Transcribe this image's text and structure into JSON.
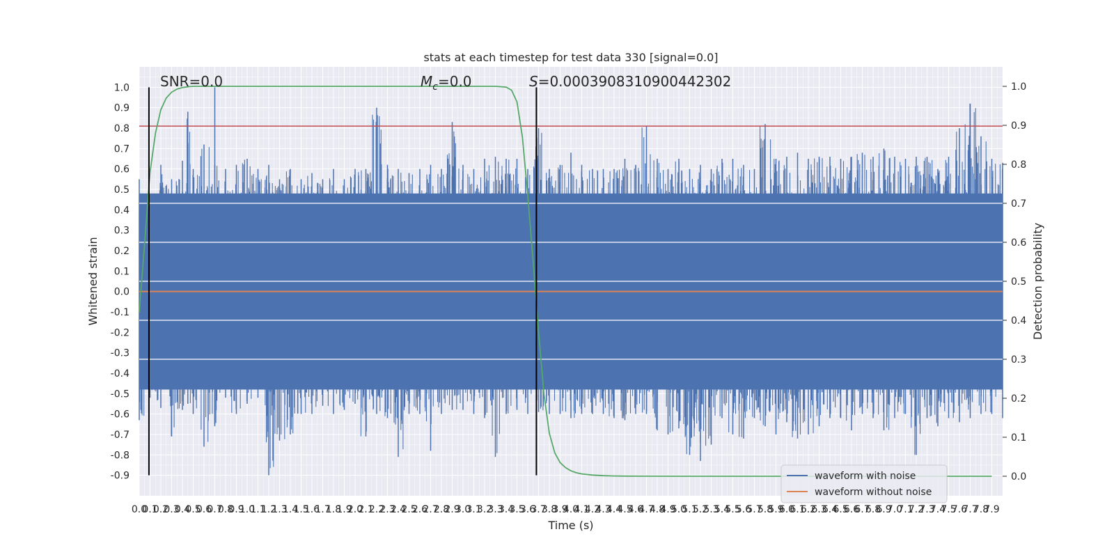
{
  "chart_data": {
    "type": "line",
    "title": "stats at each timestep for test data 330 [signal=0.0]",
    "xlabel": "Time (s)",
    "ylabel": "Whitened strain",
    "y2label": "Detection probability",
    "xlim": [
      0.0,
      8.0
    ],
    "ylim": [
      -1.0,
      1.1
    ],
    "y2lim": [
      -0.05,
      1.05
    ],
    "grid": true,
    "background": "#eaeaf2",
    "x_ticks": [
      "0.0",
      "0.1",
      "0.2",
      "0.3",
      "0.4",
      "0.5",
      "0.6",
      "0.7",
      "0.8",
      "0.9",
      "1.0",
      "1.1",
      "1.2",
      "1.3",
      "1.4",
      "1.5",
      "1.6",
      "1.7",
      "1.8",
      "1.9",
      "2.0",
      "2.1",
      "2.2",
      "2.3",
      "2.4",
      "2.5",
      "2.6",
      "2.7",
      "2.8",
      "2.9",
      "3.0",
      "3.1",
      "3.2",
      "3.3",
      "3.4",
      "3.5",
      "3.6",
      "3.7",
      "3.8",
      "3.9",
      "4.0",
      "4.1",
      "4.2",
      "4.3",
      "4.4",
      "4.5",
      "4.6",
      "4.7",
      "4.8",
      "4.9",
      "5.0",
      "5.1",
      "5.2",
      "5.3",
      "5.4",
      "5.5",
      "5.6",
      "5.7",
      "5.8",
      "5.9",
      "6.0",
      "6.1",
      "6.2",
      "6.3",
      "6.4",
      "6.5",
      "6.6",
      "6.7",
      "6.8",
      "6.9",
      "7.0",
      "7.1",
      "7.2",
      "7.3",
      "7.4",
      "7.5",
      "7.6",
      "7.7",
      "7.8",
      "7.9"
    ],
    "y_ticks": [
      "1.0",
      "0.9",
      "0.8",
      "0.7",
      "0.6",
      "0.5",
      "0.4",
      "0.3",
      "0.2",
      "0.1",
      "0.0",
      "-0.1",
      "-0.2",
      "-0.3",
      "-0.4",
      "-0.5",
      "-0.6",
      "-0.7",
      "-0.8",
      "-0.9"
    ],
    "y_tick_values": [
      1.0,
      0.9,
      0.8,
      0.7,
      0.6,
      0.5,
      0.4,
      0.3,
      0.2,
      0.1,
      0.0,
      -0.1,
      -0.2,
      -0.3,
      -0.4,
      -0.5,
      -0.6,
      -0.7,
      -0.8,
      -0.9
    ],
    "y2_ticks": [
      "1.0",
      "0.9",
      "0.8",
      "0.7",
      "0.6",
      "0.5",
      "0.4",
      "0.3",
      "0.2",
      "0.1",
      "0.0"
    ],
    "y2_tick_values": [
      1.0,
      0.9,
      0.8,
      0.7,
      0.6,
      0.5,
      0.4,
      0.3,
      0.2,
      0.1,
      0.0
    ],
    "y2_grid_values": [
      0.7,
      0.6,
      0.5,
      0.4,
      0.3
    ],
    "annotations": {
      "snr": "SNR=0.0",
      "mc_symbol": "M",
      "mc_sub": "c",
      "mc_value": "=0.0",
      "s_symbol": "S",
      "s_value": "=0.0003908310900442302"
    },
    "legend": {
      "position": "lower-right",
      "entries": [
        "waveform with noise",
        "waveform without noise"
      ]
    },
    "colors": {
      "noise": "#4c72b0",
      "clean": "#dd8452",
      "prob": "#55a868",
      "threshold": "#c44e52",
      "marker": "#000000"
    },
    "threshold": 0.81,
    "vlines": [
      0.09,
      3.68
    ],
    "vline_range": [
      -0.9,
      1.0
    ],
    "noise_envelope": [
      [
        0.0,
        0.55,
        -0.63
      ],
      [
        0.1,
        0.46,
        -0.52
      ],
      [
        0.2,
        0.62,
        -0.57
      ],
      [
        0.3,
        0.55,
        -0.71
      ],
      [
        0.4,
        0.64,
        -0.58
      ],
      [
        0.45,
        0.88,
        -0.55
      ],
      [
        0.5,
        0.6,
        -0.6
      ],
      [
        0.6,
        0.72,
        -0.76
      ],
      [
        0.7,
        0.62,
        -0.66
      ],
      [
        0.7,
        1.0,
        -0.65
      ],
      [
        0.8,
        0.6,
        -0.52
      ],
      [
        0.9,
        0.62,
        -0.6
      ],
      [
        1.0,
        0.65,
        -0.55
      ],
      [
        1.1,
        0.6,
        -0.52
      ],
      [
        1.2,
        0.62,
        -0.9
      ],
      [
        1.3,
        0.55,
        -0.73
      ],
      [
        1.4,
        0.6,
        -0.7
      ],
      [
        1.5,
        0.55,
        -0.6
      ],
      [
        1.6,
        0.58,
        -0.6
      ],
      [
        1.7,
        0.55,
        -0.56
      ],
      [
        1.8,
        0.6,
        -0.6
      ],
      [
        1.9,
        0.55,
        -0.58
      ],
      [
        2.0,
        0.6,
        -0.55
      ],
      [
        2.1,
        0.6,
        -0.71
      ],
      [
        2.2,
        0.9,
        -0.6
      ],
      [
        2.3,
        0.62,
        -0.62
      ],
      [
        2.4,
        0.6,
        -0.81
      ],
      [
        2.5,
        0.58,
        -0.6
      ],
      [
        2.6,
        0.6,
        -0.6
      ],
      [
        2.7,
        0.62,
        -0.78
      ],
      [
        2.8,
        0.6,
        -0.6
      ],
      [
        2.9,
        0.83,
        -0.58
      ],
      [
        3.0,
        0.62,
        -0.58
      ],
      [
        3.1,
        0.6,
        -0.6
      ],
      [
        3.2,
        0.65,
        -0.62
      ],
      [
        3.3,
        0.66,
        -0.81
      ],
      [
        3.4,
        0.65,
        -0.6
      ],
      [
        3.5,
        0.65,
        -0.58
      ],
      [
        3.6,
        0.6,
        -0.6
      ],
      [
        3.7,
        0.8,
        -0.59
      ],
      [
        3.8,
        0.6,
        -0.6
      ],
      [
        3.9,
        0.62,
        -0.6
      ],
      [
        4.0,
        0.68,
        -0.62
      ],
      [
        4.1,
        0.62,
        -0.6
      ],
      [
        4.2,
        0.6,
        -0.6
      ],
      [
        4.3,
        0.6,
        -0.6
      ],
      [
        4.4,
        0.6,
        -0.62
      ],
      [
        4.5,
        0.65,
        -0.63
      ],
      [
        4.6,
        0.62,
        -0.6
      ],
      [
        4.7,
        0.81,
        -0.6
      ],
      [
        4.8,
        0.65,
        -0.68
      ],
      [
        4.9,
        0.6,
        -0.7
      ],
      [
        5.0,
        0.65,
        -0.67
      ],
      [
        5.1,
        0.6,
        -0.8
      ],
      [
        5.2,
        0.62,
        -0.83
      ],
      [
        5.3,
        0.6,
        -0.75
      ],
      [
        5.4,
        0.65,
        -0.62
      ],
      [
        5.5,
        0.65,
        -0.7
      ],
      [
        5.6,
        0.62,
        -0.72
      ],
      [
        5.7,
        0.6,
        -0.62
      ],
      [
        5.8,
        0.82,
        -0.66
      ],
      [
        5.9,
        0.65,
        -0.7
      ],
      [
        6.0,
        0.66,
        -0.64
      ],
      [
        6.1,
        0.68,
        -0.72
      ],
      [
        6.2,
        0.65,
        -0.7
      ],
      [
        6.3,
        0.66,
        -0.66
      ],
      [
        6.4,
        0.66,
        -0.62
      ],
      [
        6.5,
        0.65,
        -0.62
      ],
      [
        6.6,
        0.66,
        -0.68
      ],
      [
        6.7,
        0.68,
        -0.6
      ],
      [
        6.8,
        0.66,
        -0.62
      ],
      [
        6.9,
        0.7,
        -0.68
      ],
      [
        7.0,
        0.66,
        -0.62
      ],
      [
        7.1,
        0.65,
        -0.6
      ],
      [
        7.2,
        0.66,
        -0.8
      ],
      [
        7.3,
        0.66,
        -0.62
      ],
      [
        7.4,
        0.6,
        -0.66
      ],
      [
        7.5,
        0.66,
        -0.62
      ],
      [
        7.6,
        0.8,
        -0.64
      ],
      [
        7.7,
        0.92,
        -0.62
      ],
      [
        7.8,
        0.76,
        -0.6
      ],
      [
        7.9,
        0.65,
        -0.6
      ],
      [
        8.0,
        0.63,
        -0.62
      ]
    ],
    "noise_band": [
      -0.48,
      0.48
    ],
    "clean_signal": {
      "x": [
        0.0,
        8.0
      ],
      "y": [
        0.0,
        0.0
      ]
    },
    "detection_probability": {
      "x": [
        0.0,
        0.05,
        0.1,
        0.15,
        0.2,
        0.25,
        0.3,
        0.35,
        0.4,
        0.45,
        0.5,
        0.6,
        0.8,
        1.0,
        1.5,
        2.0,
        2.5,
        3.0,
        3.3,
        3.4,
        3.45,
        3.5,
        3.55,
        3.6,
        3.65,
        3.7,
        3.75,
        3.8,
        3.85,
        3.9,
        3.95,
        4.0,
        4.05,
        4.1,
        4.2,
        4.3,
        4.4,
        4.5,
        4.7,
        5.0,
        6.0,
        7.0,
        7.9
      ],
      "y": [
        0.42,
        0.6,
        0.78,
        0.88,
        0.94,
        0.97,
        0.985,
        0.993,
        0.997,
        0.999,
        1.0,
        1.0,
        1.0,
        1.0,
        1.0,
        1.0,
        1.0,
        1.0,
        1.0,
        0.998,
        0.99,
        0.96,
        0.87,
        0.72,
        0.55,
        0.37,
        0.21,
        0.11,
        0.06,
        0.035,
        0.022,
        0.014,
        0.009,
        0.006,
        0.003,
        0.0015,
        0.0008,
        0.0004,
        0.0002,
        0.0,
        0.0,
        0.0,
        0.0
      ]
    }
  }
}
